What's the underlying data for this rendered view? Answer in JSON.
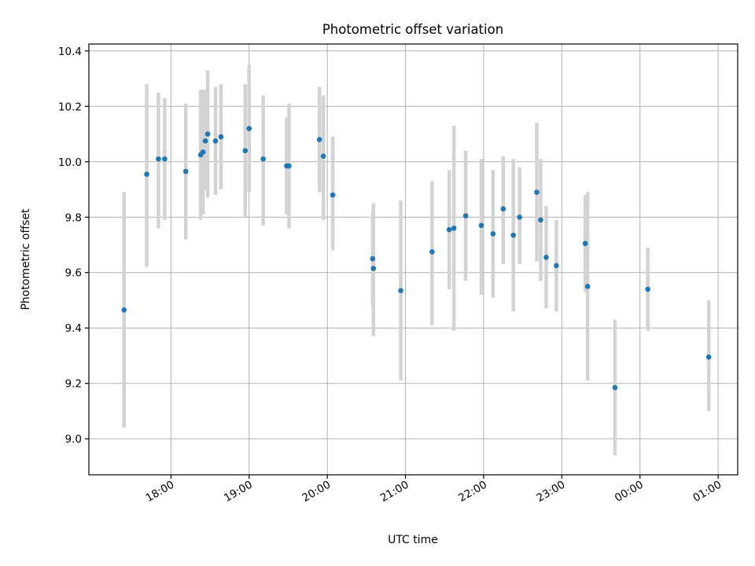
{
  "chart_data": {
    "type": "scatter",
    "title": "Photometric offset variation",
    "xlabel": "UTC time",
    "ylabel": "Photometric offset",
    "x_unit": "hours UTC (values past 24 wrap past midnight)",
    "xlim": [
      16.95,
      25.25
    ],
    "ylim": [
      8.87,
      10.425
    ],
    "x_tick_values": [
      18,
      19,
      20,
      21,
      22,
      23,
      24,
      25
    ],
    "x_tick_labels": [
      "18:00",
      "19:00",
      "20:00",
      "21:00",
      "22:00",
      "23:00",
      "00:00",
      "01:00"
    ],
    "y_tick_values": [
      9.0,
      9.2,
      9.4,
      9.6,
      9.8,
      10.0,
      10.2,
      10.4
    ],
    "y_tick_labels": [
      "9.0",
      "9.2",
      "9.4",
      "9.6",
      "9.8",
      "10.0",
      "10.2",
      "10.4"
    ],
    "grid": true,
    "point_color": "#1f77b4",
    "errorbar_color": "#d3d3d3",
    "points": [
      {
        "x": 17.4,
        "y": 9.465,
        "lo": 9.04,
        "hi": 9.89
      },
      {
        "x": 17.69,
        "y": 9.955,
        "lo": 9.62,
        "hi": 10.28
      },
      {
        "x": 17.84,
        "y": 10.01,
        "lo": 9.76,
        "hi": 10.25
      },
      {
        "x": 17.92,
        "y": 10.01,
        "lo": 9.79,
        "hi": 10.23
      },
      {
        "x": 18.19,
        "y": 9.965,
        "lo": 9.72,
        "hi": 10.21
      },
      {
        "x": 18.38,
        "y": 10.025,
        "lo": 9.79,
        "hi": 10.26
      },
      {
        "x": 18.41,
        "y": 10.035,
        "lo": 9.81,
        "hi": 10.26
      },
      {
        "x": 18.44,
        "y": 10.075,
        "lo": 9.9,
        "hi": 10.26
      },
      {
        "x": 18.47,
        "y": 10.1,
        "lo": 9.87,
        "hi": 10.33
      },
      {
        "x": 18.57,
        "y": 10.075,
        "lo": 9.88,
        "hi": 10.27
      },
      {
        "x": 18.64,
        "y": 10.09,
        "lo": 9.9,
        "hi": 10.28
      },
      {
        "x": 18.95,
        "y": 10.04,
        "lo": 9.8,
        "hi": 10.28
      },
      {
        "x": 19.0,
        "y": 10.12,
        "lo": 9.89,
        "hi": 10.35
      },
      {
        "x": 19.18,
        "y": 10.01,
        "lo": 9.77,
        "hi": 10.24
      },
      {
        "x": 19.48,
        "y": 9.985,
        "lo": 9.81,
        "hi": 10.16
      },
      {
        "x": 19.51,
        "y": 9.985,
        "lo": 9.76,
        "hi": 10.21
      },
      {
        "x": 19.9,
        "y": 10.08,
        "lo": 9.89,
        "hi": 10.27
      },
      {
        "x": 19.95,
        "y": 10.02,
        "lo": 9.79,
        "hi": 10.24
      },
      {
        "x": 20.07,
        "y": 9.88,
        "lo": 9.68,
        "hi": 10.09
      },
      {
        "x": 20.58,
        "y": 9.65,
        "lo": 9.48,
        "hi": 9.82
      },
      {
        "x": 20.59,
        "y": 9.615,
        "lo": 9.37,
        "hi": 9.85
      },
      {
        "x": 20.94,
        "y": 9.535,
        "lo": 9.21,
        "hi": 9.86
      },
      {
        "x": 21.34,
        "y": 9.675,
        "lo": 9.41,
        "hi": 9.93
      },
      {
        "x": 21.56,
        "y": 9.755,
        "lo": 9.54,
        "hi": 9.97
      },
      {
        "x": 21.62,
        "y": 9.76,
        "lo": 9.39,
        "hi": 10.13
      },
      {
        "x": 21.77,
        "y": 9.805,
        "lo": 9.57,
        "hi": 10.04
      },
      {
        "x": 21.97,
        "y": 9.77,
        "lo": 9.52,
        "hi": 10.01
      },
      {
        "x": 22.12,
        "y": 9.74,
        "lo": 9.51,
        "hi": 9.97
      },
      {
        "x": 22.25,
        "y": 9.83,
        "lo": 9.63,
        "hi": 10.02
      },
      {
        "x": 22.38,
        "y": 9.735,
        "lo": 9.46,
        "hi": 10.01
      },
      {
        "x": 22.46,
        "y": 9.8,
        "lo": 9.63,
        "hi": 9.98
      },
      {
        "x": 22.68,
        "y": 9.89,
        "lo": 9.64,
        "hi": 10.14
      },
      {
        "x": 22.73,
        "y": 9.79,
        "lo": 9.57,
        "hi": 10.01
      },
      {
        "x": 22.8,
        "y": 9.655,
        "lo": 9.47,
        "hi": 9.84
      },
      {
        "x": 22.93,
        "y": 9.625,
        "lo": 9.46,
        "hi": 9.79
      },
      {
        "x": 23.3,
        "y": 9.705,
        "lo": 9.53,
        "hi": 9.88
      },
      {
        "x": 23.33,
        "y": 9.55,
        "lo": 9.21,
        "hi": 9.89
      },
      {
        "x": 23.68,
        "y": 9.185,
        "lo": 8.94,
        "hi": 9.43
      },
      {
        "x": 24.1,
        "y": 9.54,
        "lo": 9.39,
        "hi": 9.69
      },
      {
        "x": 24.88,
        "y": 9.295,
        "lo": 9.1,
        "hi": 9.5
      }
    ]
  }
}
